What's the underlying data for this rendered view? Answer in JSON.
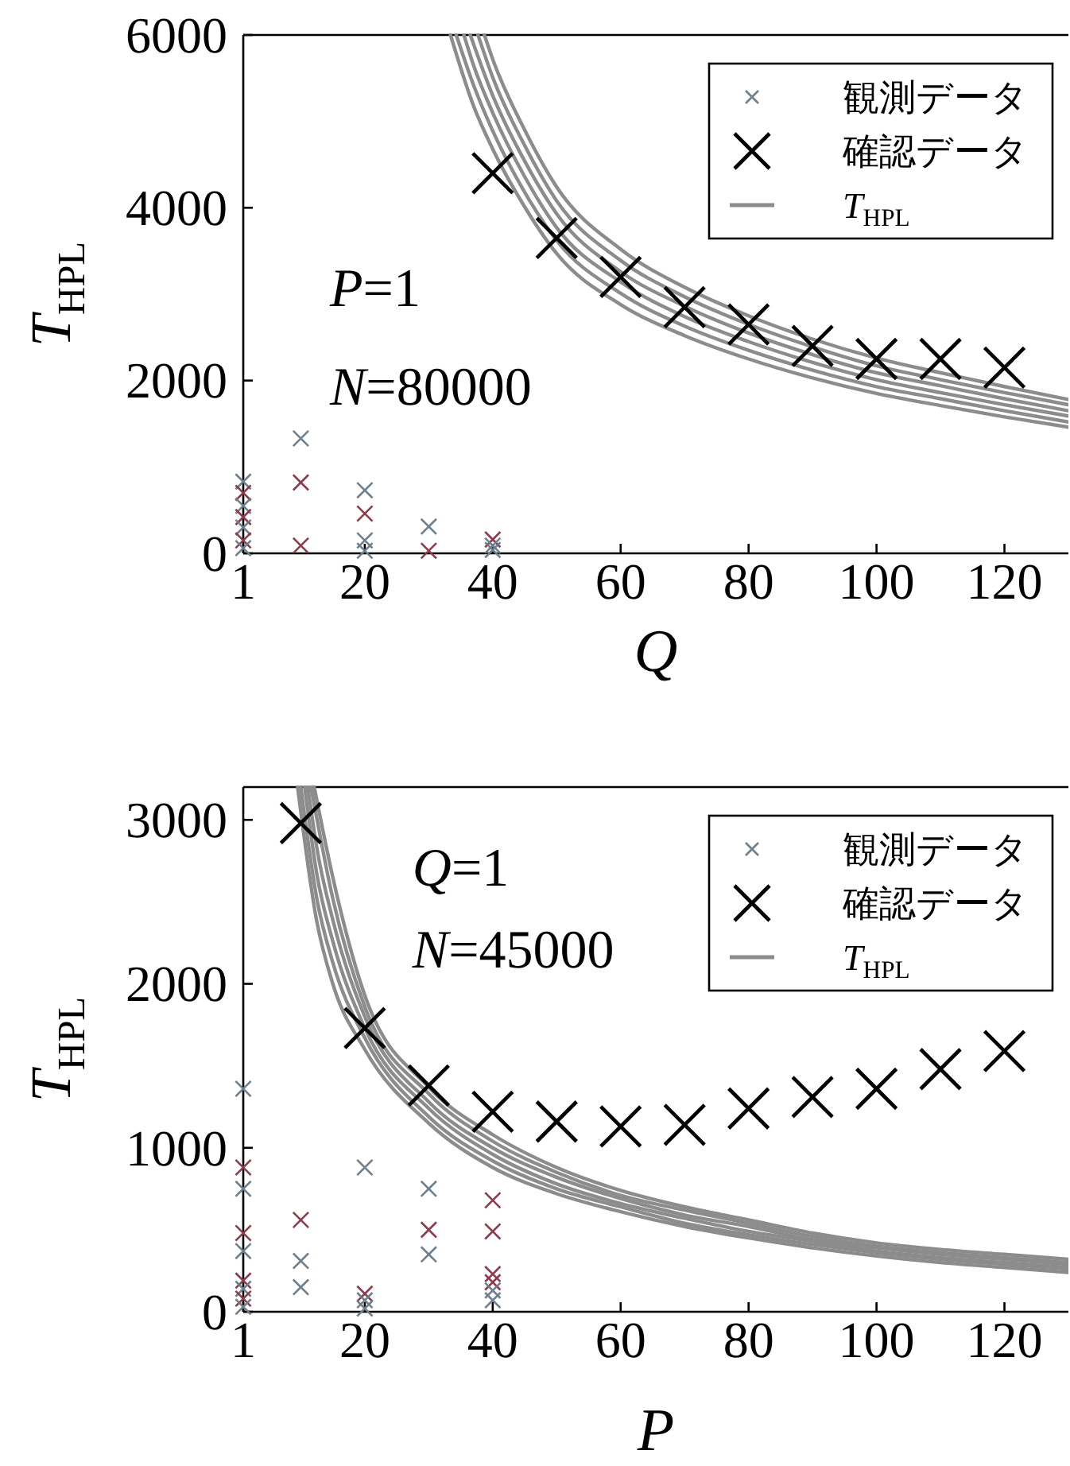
{
  "chart_data": [
    {
      "type": "scatter",
      "xlabel": "Q",
      "ylabel": "T$_{HPL}$",
      "xlim": [
        1,
        130
      ],
      "xticks": [
        1,
        20,
        40,
        60,
        80,
        100,
        120
      ],
      "ylim": [
        0,
        6000
      ],
      "yticks": [
        0,
        2000,
        4000,
        6000
      ],
      "legend": "top right",
      "annotations": [
        "P=1",
        "N=80000"
      ],
      "series": [
        {
          "name": "観測データ",
          "marker": "cross",
          "color": "#6f7f8c",
          "x": [
            1,
            1,
            1,
            1,
            1,
            1,
            1,
            10,
            10,
            10,
            20,
            20,
            20,
            20,
            30,
            30,
            40,
            40,
            40
          ],
          "values": [
            830,
            700,
            550,
            420,
            300,
            150,
            60,
            1330,
            820,
            90,
            730,
            460,
            150,
            30,
            310,
            30,
            160,
            90,
            40
          ],
          "colors": [
            "#6f7f8c",
            "#8c3c4c",
            "#6f7f8c",
            "#8c3c4c",
            "#6f7f8c",
            "#8c3c4c",
            "#6f7f8c",
            "#6f7f8c",
            "#8c3c4c",
            "#8c3c4c",
            "#6f7f8c",
            "#8c3c4c",
            "#6f7f8c",
            "#6f7f8c",
            "#6f7f8c",
            "#8c3c4c",
            "#8c3c4c",
            "#6f7f8c",
            "#6f7f8c"
          ]
        },
        {
          "name": "確認データ",
          "marker": "cross",
          "color": "#000000",
          "x": [
            40,
            50,
            60,
            70,
            80,
            90,
            100,
            110,
            120
          ],
          "values": [
            4400,
            3650,
            3200,
            2850,
            2650,
            2400,
            2250,
            2250,
            2150
          ]
        },
        {
          "name": "T$_{HPL}$",
          "type": "line",
          "color": "#8c8c8c",
          "x": [
            38.7,
            40,
            45,
            50,
            60,
            70,
            80,
            90,
            100,
            110,
            120,
            130
          ],
          "values": [
            6000,
            5720,
            4900,
            4240,
            3520,
            3080,
            2750,
            2480,
            2260,
            2090,
            1930,
            1780
          ]
        },
        {
          "type": "line",
          "color": "#8c8c8c",
          "x": [
            37.7,
            40,
            45,
            50,
            60,
            70,
            80,
            90,
            100,
            110,
            120,
            130
          ],
          "values": [
            6000,
            5510,
            4720,
            4080,
            3390,
            2970,
            2650,
            2390,
            2170,
            2010,
            1860,
            1720
          ]
        },
        {
          "type": "line",
          "color": "#8c8c8c",
          "x": [
            36.5,
            40,
            45,
            50,
            60,
            70,
            80,
            90,
            100,
            110,
            120,
            130
          ],
          "values": [
            6000,
            5300,
            4540,
            3930,
            3260,
            2860,
            2550,
            2300,
            2090,
            1940,
            1790,
            1650
          ]
        },
        {
          "type": "line",
          "color": "#8c8c8c",
          "x": [
            35.5,
            37,
            40,
            45,
            50,
            60,
            70,
            80,
            90,
            100,
            110,
            120,
            130
          ],
          "values": [
            6000,
            5650,
            5100,
            4360,
            3770,
            3140,
            2740,
            2450,
            2210,
            2010,
            1860,
            1720,
            1590
          ]
        },
        {
          "type": "line",
          "color": "#8c8c8c",
          "x": [
            34.3,
            37,
            40,
            45,
            50,
            60,
            70,
            80,
            90,
            100,
            110,
            120,
            130
          ],
          "values": [
            6000,
            5420,
            4890,
            4180,
            3620,
            3010,
            2630,
            2350,
            2120,
            1930,
            1790,
            1650,
            1520
          ]
        },
        {
          "type": "line",
          "color": "#8c8c8c",
          "x": [
            33.4,
            37,
            40,
            45,
            50,
            60,
            70,
            80,
            90,
            100,
            110,
            120,
            130
          ],
          "values": [
            6000,
            5180,
            4680,
            4010,
            3470,
            2880,
            2520,
            2250,
            2030,
            1850,
            1710,
            1580,
            1460
          ]
        }
      ]
    },
    {
      "type": "scatter",
      "xlabel": "P",
      "ylabel": "T$_{HPL}$",
      "xlim": [
        1,
        130
      ],
      "xticks": [
        1,
        20,
        40,
        60,
        80,
        100,
        120
      ],
      "ylim": [
        0,
        3200
      ],
      "yticks": [
        0,
        1000,
        2000,
        3000
      ],
      "legend": "top right",
      "annotations": [
        "Q=1",
        "N=45000"
      ],
      "series": [
        {
          "name": "観測データ",
          "marker": "cross",
          "color": "#6f7f8c",
          "x": [
            1,
            1,
            1,
            1,
            1,
            1,
            1,
            1,
            1,
            10,
            10,
            10,
            20,
            20,
            20,
            20,
            30,
            30,
            30,
            40,
            40,
            40,
            40,
            40,
            40
          ],
          "values": [
            1360,
            880,
            750,
            480,
            370,
            190,
            140,
            80,
            30,
            560,
            310,
            150,
            880,
            110,
            70,
            20,
            750,
            500,
            350,
            680,
            490,
            230,
            180,
            130,
            70
          ],
          "colors": [
            "#6f7f8c",
            "#8c3c4c",
            "#6f7f8c",
            "#8c3c4c",
            "#6f7f8c",
            "#8c3c4c",
            "#6f7f8c",
            "#8c3c4c",
            "#6f7f8c",
            "#8c3c4c",
            "#6f7f8c",
            "#6f7f8c",
            "#6f7f8c",
            "#8c3c4c",
            "#6f7f8c",
            "#6f7f8c",
            "#6f7f8c",
            "#8c3c4c",
            "#6f7f8c",
            "#8c3c4c",
            "#8c3c4c",
            "#8c3c4c",
            "#8c3c4c",
            "#6f7f8c",
            "#6f7f8c"
          ]
        },
        {
          "name": "確認データ",
          "marker": "cross",
          "color": "#000000",
          "x": [
            10,
            20,
            30,
            40,
            50,
            60,
            70,
            80,
            90,
            100,
            110,
            120
          ],
          "values": [
            2980,
            1730,
            1380,
            1220,
            1160,
            1130,
            1140,
            1240,
            1310,
            1360,
            1480,
            1590
          ]
        },
        {
          "name": "T$_{HPL}$",
          "type": "line",
          "color": "#8c8c8c",
          "x": [
            12.1,
            15,
            20,
            30,
            40,
            50,
            60,
            70,
            80,
            90,
            100,
            110,
            120,
            130
          ],
          "values": [
            3200,
            2650,
            1930,
            1370,
            1080,
            880,
            740,
            640,
            560,
            480,
            420,
            380,
            350,
            320
          ]
        },
        {
          "type": "line",
          "color": "#8c8c8c",
          "x": [
            11.6,
            15,
            20,
            30,
            40,
            50,
            60,
            70,
            80,
            90,
            100,
            110,
            120,
            130
          ],
          "values": [
            3200,
            2520,
            1860,
            1330,
            1040,
            850,
            710,
            620,
            540,
            460,
            400,
            360,
            330,
            300
          ]
        },
        {
          "type": "line",
          "color": "#8c8c8c",
          "x": [
            11.1,
            12.5,
            15,
            20,
            30,
            40,
            50,
            60,
            70,
            80,
            90,
            100,
            110,
            120,
            130
          ],
          "values": [
            3200,
            2830,
            2390,
            1800,
            1280,
            1000,
            820,
            690,
            590,
            520,
            440,
            390,
            350,
            320,
            290
          ]
        },
        {
          "type": "line",
          "color": "#8c8c8c",
          "x": [
            10.6,
            12.5,
            15,
            20,
            30,
            40,
            50,
            60,
            70,
            80,
            90,
            100,
            110,
            120,
            130
          ],
          "values": [
            3200,
            2670,
            2260,
            1730,
            1240,
            960,
            780,
            660,
            570,
            490,
            430,
            370,
            330,
            300,
            270
          ]
        },
        {
          "type": "line",
          "color": "#8c8c8c",
          "x": [
            10,
            12.5,
            15,
            20,
            30,
            40,
            50,
            60,
            70,
            80,
            90,
            100,
            110,
            120,
            130
          ],
          "values": [
            3200,
            2520,
            2130,
            1670,
            1190,
            920,
            750,
            640,
            540,
            470,
            410,
            360,
            320,
            290,
            260
          ]
        },
        {
          "type": "line",
          "color": "#8c8c8c",
          "x": [
            9.5,
            12.5,
            15,
            20,
            30,
            40,
            50,
            60,
            70,
            80,
            90,
            100,
            110,
            120,
            130
          ],
          "values": [
            3200,
            2380,
            2000,
            1600,
            1150,
            880,
            720,
            610,
            520,
            450,
            390,
            340,
            300,
            270,
            240
          ]
        }
      ]
    }
  ]
}
